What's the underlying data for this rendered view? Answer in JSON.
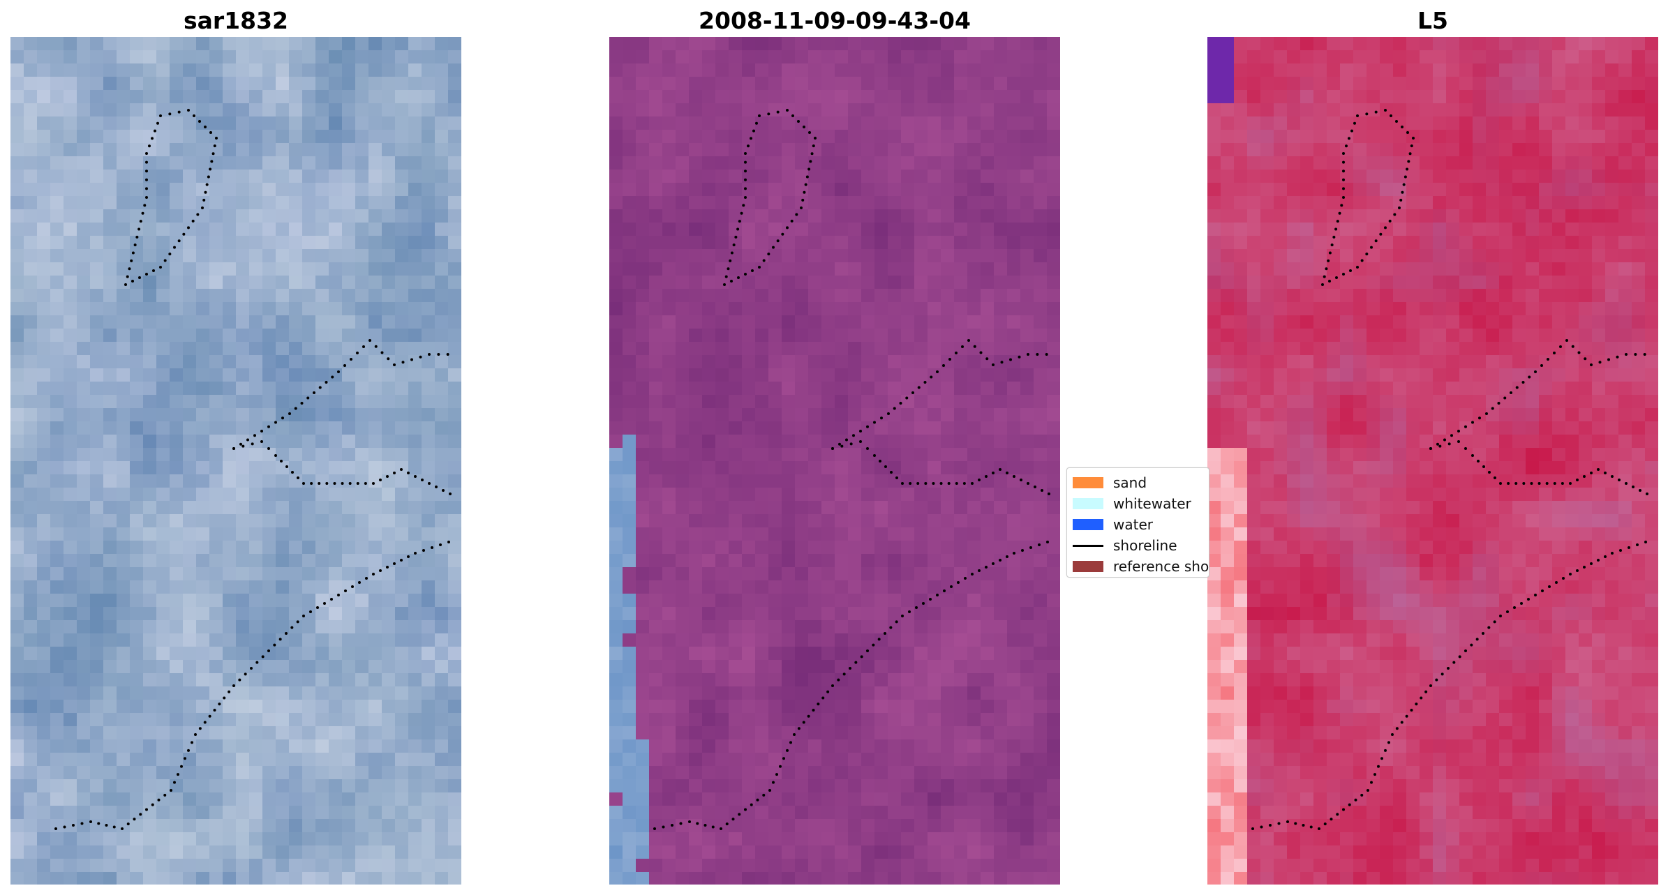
{
  "panels": [
    {
      "title": "sar1832",
      "palette": "blue"
    },
    {
      "title": "2008-11-09-09-43-04",
      "palette": "purple"
    },
    {
      "title": "L5",
      "palette": "red"
    }
  ],
  "legend": {
    "items": [
      {
        "label": "sand",
        "color": "#ff8c3a",
        "kind": "patch"
      },
      {
        "label": "whitewater",
        "color": "#c8fbff",
        "kind": "patch"
      },
      {
        "label": "water",
        "color": "#1f5fff",
        "kind": "patch"
      },
      {
        "label": "shoreline",
        "color": "#000000",
        "kind": "line"
      },
      {
        "label": "reference shoreline",
        "color": "#9b3b3b",
        "kind": "patch"
      }
    ]
  },
  "colors": {
    "shoreline_dots": "#000000",
    "blue_base": "#6f8fb8",
    "purple_base": "#8a3f84",
    "red_base": "#c93f6a"
  }
}
